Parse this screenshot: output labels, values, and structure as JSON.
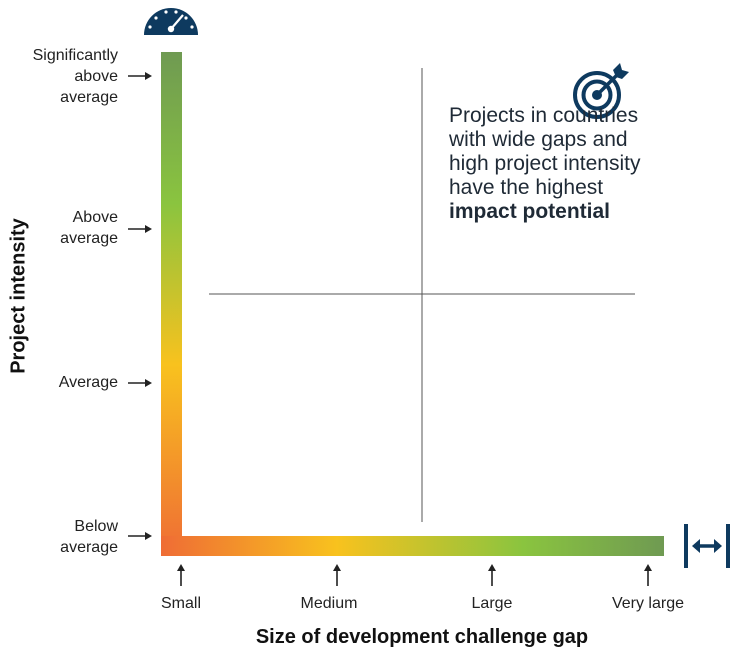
{
  "y_axis": {
    "title": "Project intensity",
    "levels": [
      {
        "label": "Significantly\nabove\naverage"
      },
      {
        "label": "Above\naverage"
      },
      {
        "label": "Average"
      },
      {
        "label": "Below\naverage"
      }
    ]
  },
  "x_axis": {
    "title": "Size of development challenge gap",
    "levels": [
      {
        "label": "Small"
      },
      {
        "label": "Medium"
      },
      {
        "label": "Large"
      },
      {
        "label": "Very large"
      }
    ]
  },
  "callout": {
    "text": "Projects in countries with wide gaps and high project intensity have the highest",
    "emphasis": "impact potential"
  },
  "icons": {
    "y_axis_icon": "speedometer-icon",
    "x_axis_icon": "horizontal-expand-icon",
    "callout_icon": "target-icon"
  },
  "colors": {
    "gradient_low": "#ef6c35",
    "gradient_mid": "#f8c21e",
    "gradient_high_green": "#8ac43f",
    "gradient_top": "#6f9a52",
    "icon_navy": "#0e3a5f",
    "text": "#222222"
  }
}
